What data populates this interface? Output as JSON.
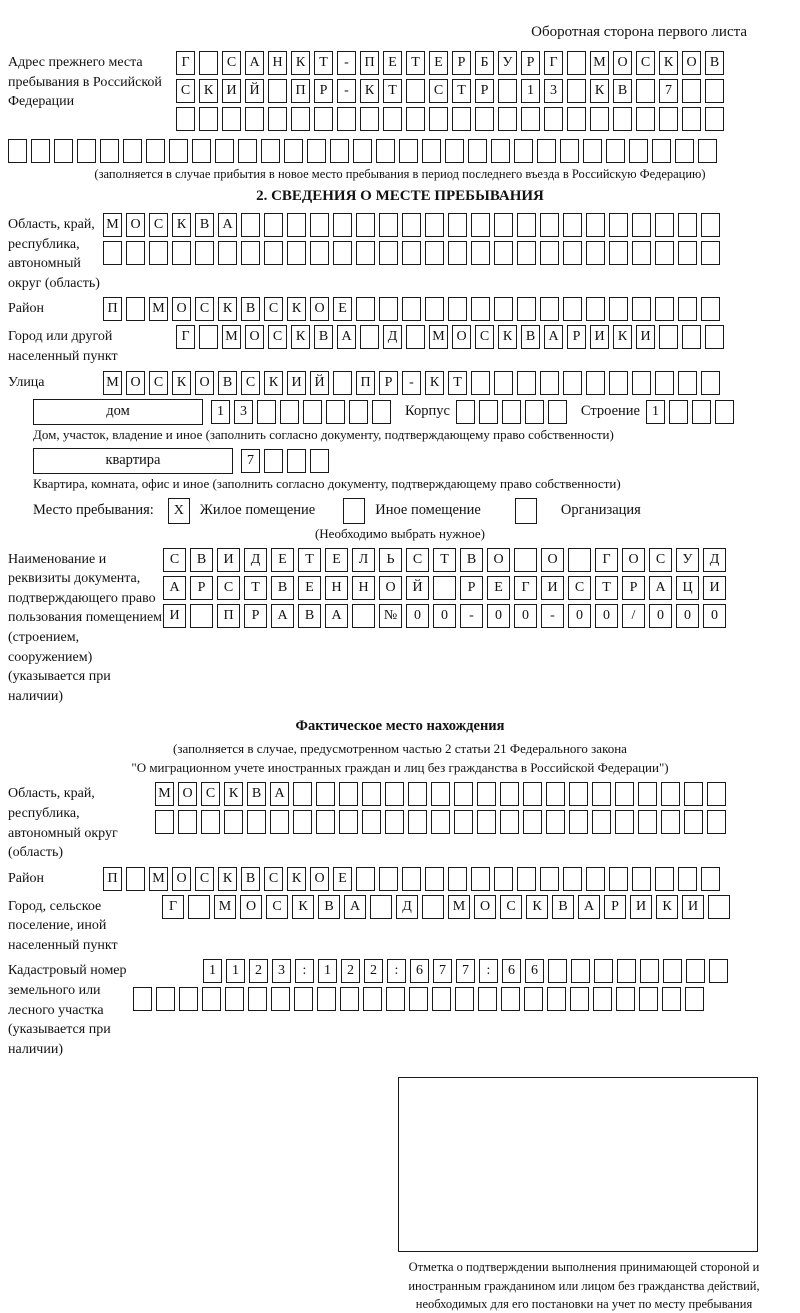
{
  "page": {
    "header_note": "Оборотная сторона первого листа"
  },
  "prev_address": {
    "label": "Адрес прежнего места пребывания в Российской Федерации",
    "rows": {
      "r1": {
        "value": "Г САНКТ-ПЕТЕРБУРГ МОСКОВ",
        "count": 24
      },
      "r2": {
        "value": "СКИЙ ПР-КТ СТР 13 КВ 7",
        "count": 24
      },
      "r3": {
        "value": "",
        "count": 24
      },
      "r4": {
        "value": "",
        "count": 31
      }
    },
    "note": "(заполняется в случае прибытия в новое место пребывания в период последнего въезда в Российскую Федерацию)"
  },
  "section2": {
    "title": "2. СВЕДЕНИЯ О МЕСТЕ ПРЕБЫВАНИЯ",
    "region": {
      "label": "Область, край, республика, автономный округ (область)",
      "r1": {
        "value": "МОСКВА",
        "count": 27
      },
      "r2": {
        "value": "",
        "count": 27
      }
    },
    "district": {
      "label": "Район",
      "r1": {
        "value": "П МОСКВСКОЕ",
        "count": 27
      }
    },
    "city": {
      "label": "Город или другой населенный пункт",
      "r1": {
        "value": "Г МОСКВА Д МОСКВАРИКИ",
        "count": 24
      }
    },
    "street": {
      "label": "Улица",
      "r1": {
        "value": "МОСКОВСКИЙ ПР-КТ",
        "count": 27
      }
    },
    "house": {
      "box_label": "дом",
      "cells": {
        "value": "13",
        "count": 8
      },
      "korpus_label": "Корпус",
      "korpus_cells": {
        "value": "",
        "count": 5
      },
      "stroenie_label": "Строение",
      "stroenie_cells": {
        "value": "1",
        "count": 4
      },
      "note": "Дом, участок, владение и иное (заполнить согласно документу, подтверждающему право собственности)"
    },
    "apartment": {
      "box_label": "квартира",
      "cells": {
        "value": "7",
        "count": 4
      },
      "note": "Квартира, комната, офис и иное (заполнить согласно документу, подтверждающему право собственности)"
    },
    "stay_type": {
      "label": "Место пребывания:",
      "options": [
        {
          "label": "Жилое помещение",
          "mark": "X"
        },
        {
          "label": "Иное помещение",
          "mark": ""
        },
        {
          "label": "Организация",
          "mark": ""
        }
      ],
      "note": "(Необходимо выбрать нужное)"
    },
    "doc": {
      "label": "Наименование и реквизиты документа, подтверждающего право пользования помещением (строением, сооружением) (указывается при наличии)",
      "r1": {
        "value": "СВИДЕТЕЛЬСТВО О ГОСУД",
        "count": 21
      },
      "r2": {
        "value": "АРСТВЕННОЙ РЕГИСТРАЦИ",
        "count": 21
      },
      "r3": {
        "value": "И ПРАВА №00-00-00/000",
        "count": 21
      }
    }
  },
  "section3": {
    "title": "Фактическое место нахождения",
    "note_line1": "(заполняется в случае, предусмотренном частью 2 статьи 21 Федерального закона",
    "note_line2": "\"О миграционном учете иностранных граждан и лиц без гражданства в Российской Федерации\")",
    "region": {
      "label": "Область, край, республика, автономный округ (область)",
      "r1": {
        "value": "МОСКВА",
        "count": 25
      },
      "r2": {
        "value": "",
        "count": 25
      }
    },
    "district": {
      "label": "Район",
      "r1": {
        "value": "П МОСКВСКОЕ",
        "count": 27
      }
    },
    "city": {
      "label": "Город, сельское поселение, иной населенный пункт",
      "r1": {
        "value": "Г МОСКВА Д МОСКВАРИКИ",
        "count": 22
      }
    },
    "cadastral": {
      "label": "Кадастровый номер земельного или лесного участка (указывается при наличии)",
      "r1": {
        "value": "1123:122:677:66",
        "count": 23
      },
      "r2": {
        "value": "",
        "count": 25
      }
    },
    "stamp_note": "Отметка о подтверждении выполнения принимающей стороной и иностранным гражданином или лицом без гражданства действий, необходимых для его постановки на учет по месту пребывания"
  }
}
